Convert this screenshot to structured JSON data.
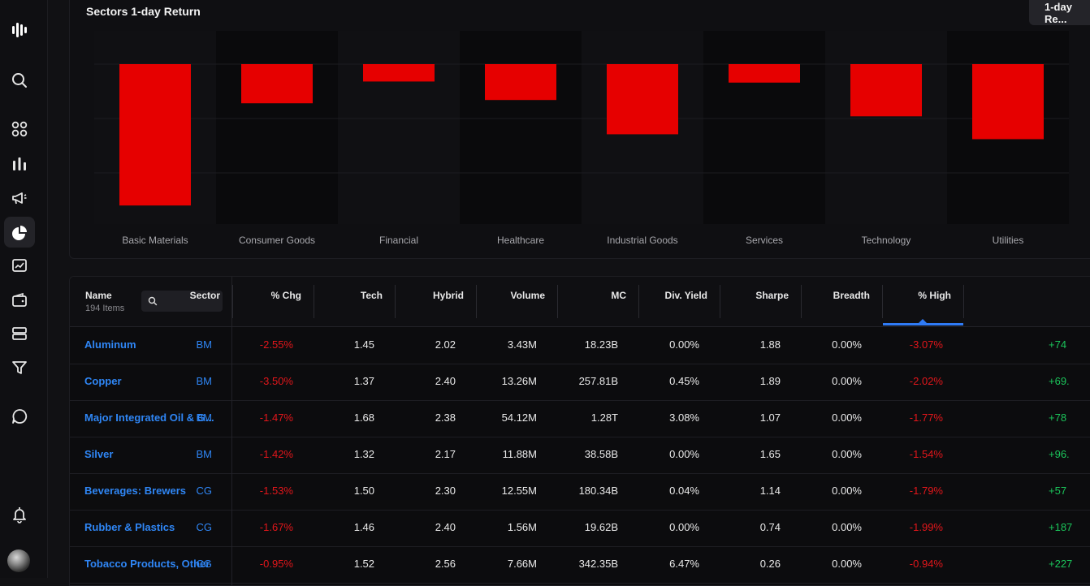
{
  "sidebar": {
    "icons": [
      "logo-icon",
      "search-icon",
      "grid-icon",
      "bar-chart-icon",
      "megaphone-icon",
      "sectors-icon",
      "chart-frame-icon",
      "wallet-icon",
      "list-icon",
      "filter-icon",
      "chat-icon",
      "bell-icon"
    ]
  },
  "chart_panel": {
    "title": "Sectors 1-day Return",
    "button_label": "1-day Re..."
  },
  "chart_data": {
    "type": "bar",
    "categories": [
      "Basic Materials",
      "Consumer Goods",
      "Financial",
      "Healthcare",
      "Industrial Goods",
      "Services",
      "Technology",
      "Utilities"
    ],
    "values": [
      -2.6,
      -0.72,
      -0.32,
      -0.66,
      -1.29,
      -0.34,
      -0.96,
      -1.38
    ],
    "ylim": [
      -3.0,
      0
    ],
    "grid": true,
    "colors": {
      "bar": "#e60000",
      "band_dark": "#0a0a0c",
      "band_light": "#101013",
      "gridline": "#1c1c20",
      "label": "#a8a8ad"
    }
  },
  "table": {
    "name_header": "Name",
    "item_count": "194 Items",
    "search_placeholder": "",
    "headers": [
      "Sector",
      "% Chg",
      "Tech",
      "Hybrid",
      "Volume",
      "MC",
      "Div. Yield",
      "Sharpe",
      "Breadth",
      "% High"
    ],
    "rows": [
      {
        "name": "Aluminum",
        "sector": "BM",
        "chg": "-2.55%",
        "tech": "1.45",
        "hybrid": "2.02",
        "volume": "3.43M",
        "mc": "18.23B",
        "div": "0.00%",
        "sharpe": "1.88",
        "breadth": "0.00%",
        "high": "-3.07%",
        "extra": "+74"
      },
      {
        "name": "Copper",
        "sector": "BM",
        "chg": "-3.50%",
        "tech": "1.37",
        "hybrid": "2.40",
        "volume": "13.26M",
        "mc": "257.81B",
        "div": "0.45%",
        "sharpe": "1.89",
        "breadth": "0.00%",
        "high": "-2.02%",
        "extra": "+69."
      },
      {
        "name": "Major Integrated Oil & G...",
        "sector": "BM",
        "chg": "-1.47%",
        "tech": "1.68",
        "hybrid": "2.38",
        "volume": "54.12M",
        "mc": "1.28T",
        "div": "3.08%",
        "sharpe": "1.07",
        "breadth": "0.00%",
        "high": "-1.77%",
        "extra": "+78"
      },
      {
        "name": "Silver",
        "sector": "BM",
        "chg": "-1.42%",
        "tech": "1.32",
        "hybrid": "2.17",
        "volume": "11.88M",
        "mc": "38.58B",
        "div": "0.00%",
        "sharpe": "1.65",
        "breadth": "0.00%",
        "high": "-1.54%",
        "extra": "+96."
      },
      {
        "name": "Beverages: Brewers",
        "sector": "CG",
        "chg": "-1.53%",
        "tech": "1.50",
        "hybrid": "2.30",
        "volume": "12.55M",
        "mc": "180.34B",
        "div": "0.04%",
        "sharpe": "1.14",
        "breadth": "0.00%",
        "high": "-1.79%",
        "extra": "+57"
      },
      {
        "name": "Rubber & Plastics",
        "sector": "CG",
        "chg": "-1.67%",
        "tech": "1.46",
        "hybrid": "2.40",
        "volume": "1.56M",
        "mc": "19.62B",
        "div": "0.00%",
        "sharpe": "0.74",
        "breadth": "0.00%",
        "high": "-1.99%",
        "extra": "+187"
      },
      {
        "name": "Tobacco Products, Other",
        "sector": "CG",
        "chg": "-0.95%",
        "tech": "1.52",
        "hybrid": "2.56",
        "volume": "7.66M",
        "mc": "342.35B",
        "div": "6.47%",
        "sharpe": "0.26",
        "breadth": "0.00%",
        "high": "-0.94%",
        "extra": "+227"
      }
    ]
  }
}
